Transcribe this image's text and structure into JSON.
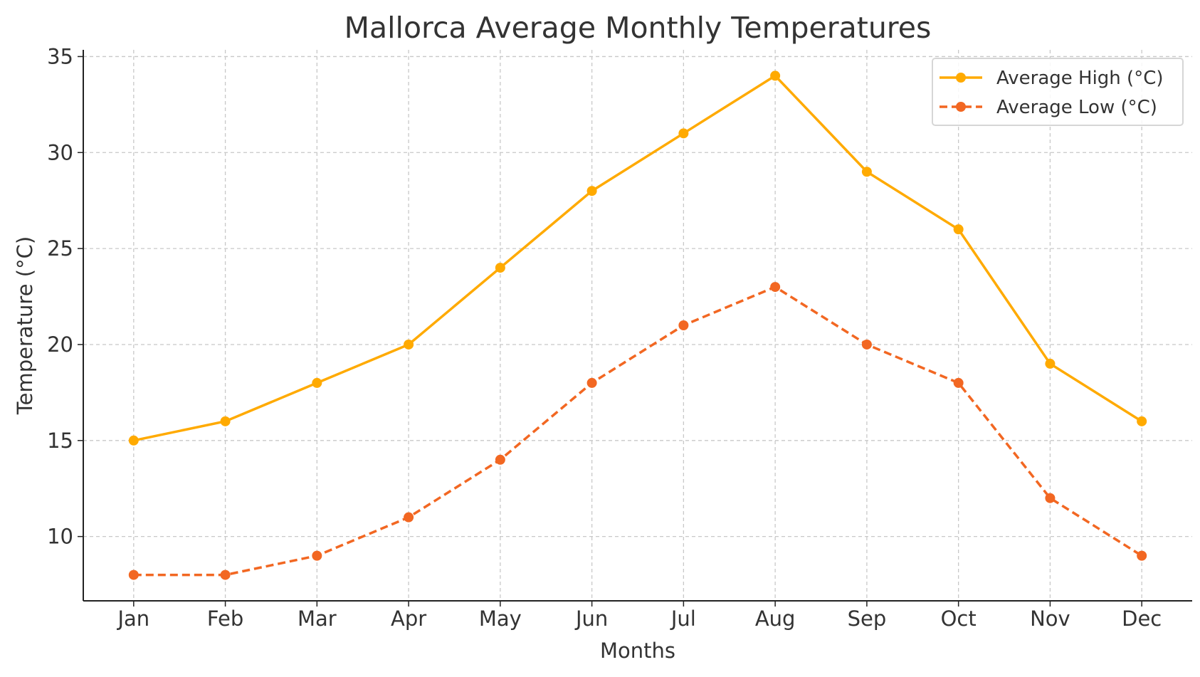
{
  "chart_data": {
    "type": "line",
    "title": "Mallorca Average Monthly Temperatures",
    "xlabel": "Months",
    "ylabel": "Temperature (°C)",
    "categories": [
      "Jan",
      "Feb",
      "Mar",
      "Apr",
      "May",
      "Jun",
      "Jul",
      "Aug",
      "Sep",
      "Oct",
      "Nov",
      "Dec"
    ],
    "ylim": [
      6.65,
      35.35
    ],
    "yticks": [
      10,
      15,
      20,
      25,
      30,
      35
    ],
    "grid": true,
    "legend_position": "top-right",
    "series": [
      {
        "name": "Average High (°C)",
        "color": "#FFAA00",
        "linestyle": "solid",
        "marker": "circle",
        "values": [
          15,
          16,
          18,
          20,
          24,
          28,
          31,
          34,
          29,
          26,
          19,
          16
        ]
      },
      {
        "name": "Average Low (°C)",
        "color": "#F26722",
        "linestyle": "dashed",
        "marker": "circle",
        "values": [
          8,
          8,
          9,
          11,
          14,
          18,
          21,
          23,
          20,
          18,
          12,
          9
        ]
      }
    ]
  }
}
